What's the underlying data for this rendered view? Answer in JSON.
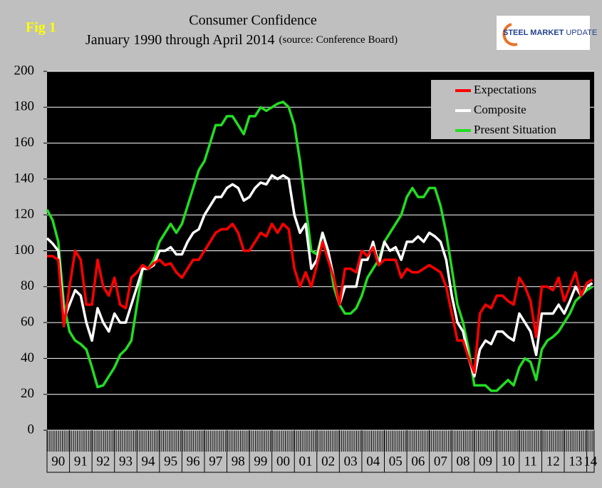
{
  "fig_label": "Fig 1",
  "logo": {
    "bold": "STEEL MARKET",
    "light": "UPDATE"
  },
  "chart_data": {
    "type": "line",
    "title": "Consumer Confidence",
    "subtitle": "January 1990 through April 2014",
    "source": "(source: Conference Board)",
    "x": [
      1990,
      1990.25,
      1990.5,
      1990.75,
      1991,
      1991.25,
      1991.5,
      1991.75,
      1992,
      1992.25,
      1992.5,
      1992.75,
      1993,
      1993.25,
      1993.5,
      1993.75,
      1994,
      1994.25,
      1994.5,
      1994.75,
      1995,
      1995.25,
      1995.5,
      1995.75,
      1996,
      1996.25,
      1996.5,
      1996.75,
      1997,
      1997.25,
      1997.5,
      1997.75,
      1998,
      1998.25,
      1998.5,
      1998.75,
      1999,
      1999.25,
      1999.5,
      1999.75,
      2000,
      2000.25,
      2000.5,
      2000.75,
      2001,
      2001.25,
      2001.5,
      2001.75,
      2002,
      2002.25,
      2002.5,
      2002.75,
      2003,
      2003.25,
      2003.5,
      2003.75,
      2004,
      2004.25,
      2004.5,
      2004.75,
      2005,
      2005.25,
      2005.5,
      2005.75,
      2006,
      2006.25,
      2006.5,
      2006.75,
      2007,
      2007.25,
      2007.5,
      2007.75,
      2008,
      2008.25,
      2008.5,
      2008.75,
      2009,
      2009.25,
      2009.5,
      2009.75,
      2010,
      2010.25,
      2010.5,
      2010.75,
      2011,
      2011.25,
      2011.5,
      2011.75,
      2012,
      2012.25,
      2012.5,
      2012.75,
      2013,
      2013.25,
      2013.5,
      2013.75,
      2014,
      2014.25
    ],
    "xlim": [
      1990,
      2014.33
    ],
    "xticks": [
      {
        "value": 1990,
        "label": "90"
      },
      {
        "value": 1991,
        "label": "91"
      },
      {
        "value": 1992,
        "label": "92"
      },
      {
        "value": 1993,
        "label": "93"
      },
      {
        "value": 1994,
        "label": "94"
      },
      {
        "value": 1995,
        "label": "95"
      },
      {
        "value": 1996,
        "label": "96"
      },
      {
        "value": 1997,
        "label": "97"
      },
      {
        "value": 1998,
        "label": "98"
      },
      {
        "value": 1999,
        "label": "99"
      },
      {
        "value": 2000,
        "label": "00"
      },
      {
        "value": 2001,
        "label": "01"
      },
      {
        "value": 2002,
        "label": "02"
      },
      {
        "value": 2003,
        "label": "03"
      },
      {
        "value": 2004,
        "label": "04"
      },
      {
        "value": 2005,
        "label": "05"
      },
      {
        "value": 2006,
        "label": "06"
      },
      {
        "value": 2007,
        "label": "07"
      },
      {
        "value": 2008,
        "label": "08"
      },
      {
        "value": 2009,
        "label": "09"
      },
      {
        "value": 2010,
        "label": "10"
      },
      {
        "value": 2011,
        "label": "11"
      },
      {
        "value": 2012,
        "label": "12"
      },
      {
        "value": 2013,
        "label": "13"
      },
      {
        "value": 2014,
        "label": "14"
      }
    ],
    "ylim": [
      0,
      200
    ],
    "yticks": [
      0,
      20,
      40,
      60,
      80,
      100,
      120,
      140,
      160,
      180,
      200
    ],
    "grid": true,
    "legend": "top-right",
    "series": [
      {
        "name": "Expectations",
        "color": "#ff0000",
        "values": [
          97,
          97,
          95,
          58,
          80,
          100,
          95,
          70,
          70,
          95,
          80,
          75,
          85,
          70,
          68,
          85,
          88,
          92,
          90,
          93,
          95,
          92,
          93,
          88,
          85,
          90,
          95,
          95,
          100,
          105,
          110,
          112,
          112,
          115,
          110,
          100,
          100,
          105,
          110,
          108,
          115,
          110,
          115,
          112,
          90,
          80,
          88,
          80,
          92,
          105,
          95,
          85,
          70,
          90,
          90,
          88,
          100,
          97,
          102,
          92,
          95,
          95,
          95,
          85,
          90,
          88,
          88,
          90,
          92,
          90,
          88,
          80,
          65,
          50,
          50,
          40,
          32,
          65,
          70,
          68,
          75,
          75,
          72,
          70,
          85,
          80,
          72,
          52,
          80,
          80,
          78,
          85,
          72,
          80,
          88,
          75,
          82,
          84
        ]
      },
      {
        "name": "Composite",
        "color": "#ffffff",
        "values": [
          107,
          104,
          100,
          62,
          70,
          78,
          75,
          60,
          50,
          68,
          60,
          55,
          65,
          60,
          60,
          70,
          80,
          90,
          90,
          92,
          100,
          100,
          102,
          98,
          98,
          105,
          110,
          112,
          120,
          125,
          130,
          130,
          135,
          137,
          135,
          128,
          130,
          135,
          138,
          137,
          142,
          140,
          142,
          140,
          120,
          110,
          115,
          90,
          95,
          110,
          100,
          85,
          70,
          80,
          80,
          80,
          95,
          95,
          105,
          92,
          105,
          100,
          102,
          95,
          105,
          105,
          108,
          105,
          110,
          108,
          105,
          95,
          75,
          60,
          55,
          40,
          30,
          45,
          50,
          48,
          55,
          55,
          52,
          50,
          65,
          60,
          55,
          42,
          65,
          65,
          65,
          70,
          65,
          72,
          80,
          75,
          80,
          82
        ]
      },
      {
        "name": "Present Situation",
        "color": "#22dd22",
        "values": [
          123,
          117,
          105,
          70,
          55,
          50,
          48,
          45,
          35,
          24,
          25,
          30,
          35,
          42,
          45,
          50,
          70,
          90,
          90,
          95,
          105,
          110,
          115,
          110,
          115,
          125,
          135,
          145,
          150,
          160,
          170,
          170,
          175,
          175,
          170,
          165,
          175,
          175,
          180,
          178,
          180,
          182,
          183,
          180,
          170,
          150,
          125,
          100,
          98,
          110,
          100,
          80,
          70,
          65,
          65,
          68,
          75,
          85,
          90,
          95,
          105,
          110,
          115,
          120,
          130,
          135,
          130,
          130,
          135,
          135,
          125,
          110,
          90,
          70,
          60,
          45,
          25,
          25,
          25,
          22,
          22,
          25,
          28,
          25,
          35,
          40,
          38,
          28,
          45,
          50,
          52,
          55,
          60,
          65,
          72,
          75,
          78,
          80
        ]
      }
    ]
  }
}
